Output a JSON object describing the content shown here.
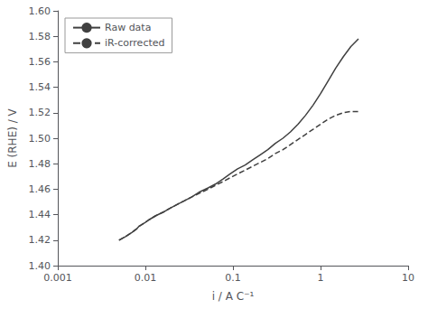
{
  "chart_data": {
    "type": "line",
    "xlabel": "i / A C⁻¹",
    "ylabel": "E (RHE) / V",
    "log": "x",
    "grid": false,
    "legend": "upper left",
    "xlim": [
      0.001,
      10
    ],
    "ylim": [
      1.4,
      1.6
    ],
    "xticks": [
      0.001,
      0.01,
      0.1,
      1,
      10
    ],
    "yticks": [
      {
        "value": 1.4,
        "label": "1.40"
      },
      1.42,
      1.44,
      1.46,
      1.48,
      {
        "value": 1.5,
        "label": "1.50"
      },
      1.52,
      1.54,
      1.56,
      1.58,
      {
        "value": 1.6,
        "label": "1.60"
      }
    ],
    "x": [
      0.005,
      0.006,
      0.007,
      0.008,
      0.0085,
      0.009,
      0.01,
      0.011,
      0.013,
      0.016,
      0.019,
      0.023,
      0.028,
      0.034,
      0.042,
      0.052,
      0.063,
      0.077,
      0.093,
      0.113,
      0.138,
      0.168,
      0.205,
      0.25,
      0.305,
      0.372,
      0.453,
      0.553,
      0.674,
      0.822,
      1.0,
      1.22,
      1.49,
      1.82,
      2.22,
      2.71
    ],
    "series": [
      {
        "name": "Raw data",
        "color": "#404040",
        "line_style": "solid",
        "values": [
          1.42,
          1.423,
          1.426,
          1.429,
          1.431,
          1.432,
          1.434,
          1.436,
          1.439,
          1.442,
          1.445,
          1.448,
          1.451,
          1.454,
          1.458,
          1.461,
          1.464,
          1.468,
          1.472,
          1.476,
          1.479,
          1.483,
          1.487,
          1.491,
          1.496,
          1.5,
          1.505,
          1.511,
          1.518,
          1.526,
          1.535,
          1.545,
          1.555,
          1.564,
          1.572,
          1.578
        ]
      },
      {
        "name": "iR-corrected",
        "color": "#404040",
        "line_style": "dashed",
        "values": [
          1.42,
          1.423,
          1.426,
          1.429,
          1.431,
          1.432,
          1.434,
          1.436,
          1.439,
          1.442,
          1.445,
          1.448,
          1.451,
          1.454,
          1.457,
          1.46,
          1.463,
          1.466,
          1.469,
          1.472,
          1.475,
          1.478,
          1.481,
          1.484,
          1.488,
          1.491,
          1.495,
          1.499,
          1.503,
          1.507,
          1.511,
          1.515,
          1.518,
          1.52,
          1.521,
          1.521
        ]
      }
    ]
  }
}
